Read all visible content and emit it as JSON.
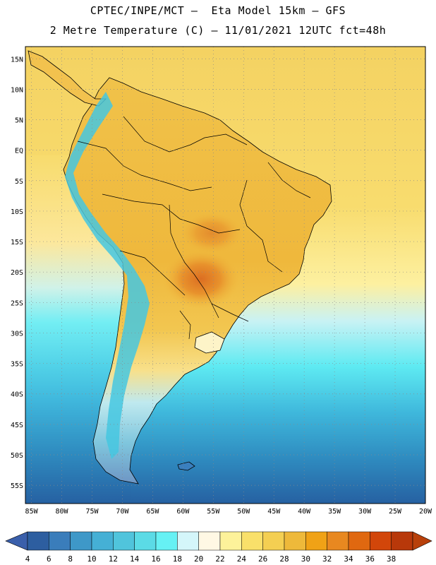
{
  "header": {
    "line1": "CPTEC/INPE/MCT —  Eta Model 15km — GFS",
    "line2": "2 Metre Temperature (C) — 11/01/2021 12UTC fct=48h"
  },
  "map": {
    "lat_labels": [
      "15N",
      "10N",
      "5N",
      "EQ",
      "5S",
      "10S",
      "15S",
      "20S",
      "25S",
      "30S",
      "35S",
      "40S",
      "45S",
      "50S",
      "55S"
    ],
    "lon_labels": [
      "85W",
      "80W",
      "75W",
      "70W",
      "65W",
      "60W",
      "55W",
      "50W",
      "45W",
      "40W",
      "35W",
      "30W",
      "25W",
      "20W"
    ],
    "lat_range": [
      -58,
      17
    ],
    "lon_range": [
      -86,
      -20
    ],
    "gridlines": "dotted",
    "colors": {
      "ocean_north": "#f4d056",
      "land_north": "#efb438",
      "hot_core": "#e2782c",
      "andes_cold": "#3fd7e6",
      "ocean_mid": "#61eaf2",
      "ocean_south": "#2f8fc0",
      "ocean_far_south": "#2661a2"
    }
  },
  "colorbar": {
    "ticks": [
      "4",
      "6",
      "8",
      "10",
      "12",
      "14",
      "16",
      "18",
      "20",
      "22",
      "24",
      "26",
      "28",
      "30",
      "32",
      "34",
      "36",
      "38"
    ],
    "colors": [
      "#2d5ea0",
      "#3a7dbb",
      "#3e98c8",
      "#45b0d5",
      "#50c4dc",
      "#5bdbe6",
      "#66f1f4",
      "#d4f6fa",
      "#fff8e4",
      "#fdf29a",
      "#f9e06a",
      "#f4cf52",
      "#eeb93a",
      "#f0a216",
      "#e88820",
      "#e06810",
      "#d2460a",
      "#b8380a"
    ],
    "under_color": "#3a5fab",
    "over_color": "#b8400a"
  }
}
